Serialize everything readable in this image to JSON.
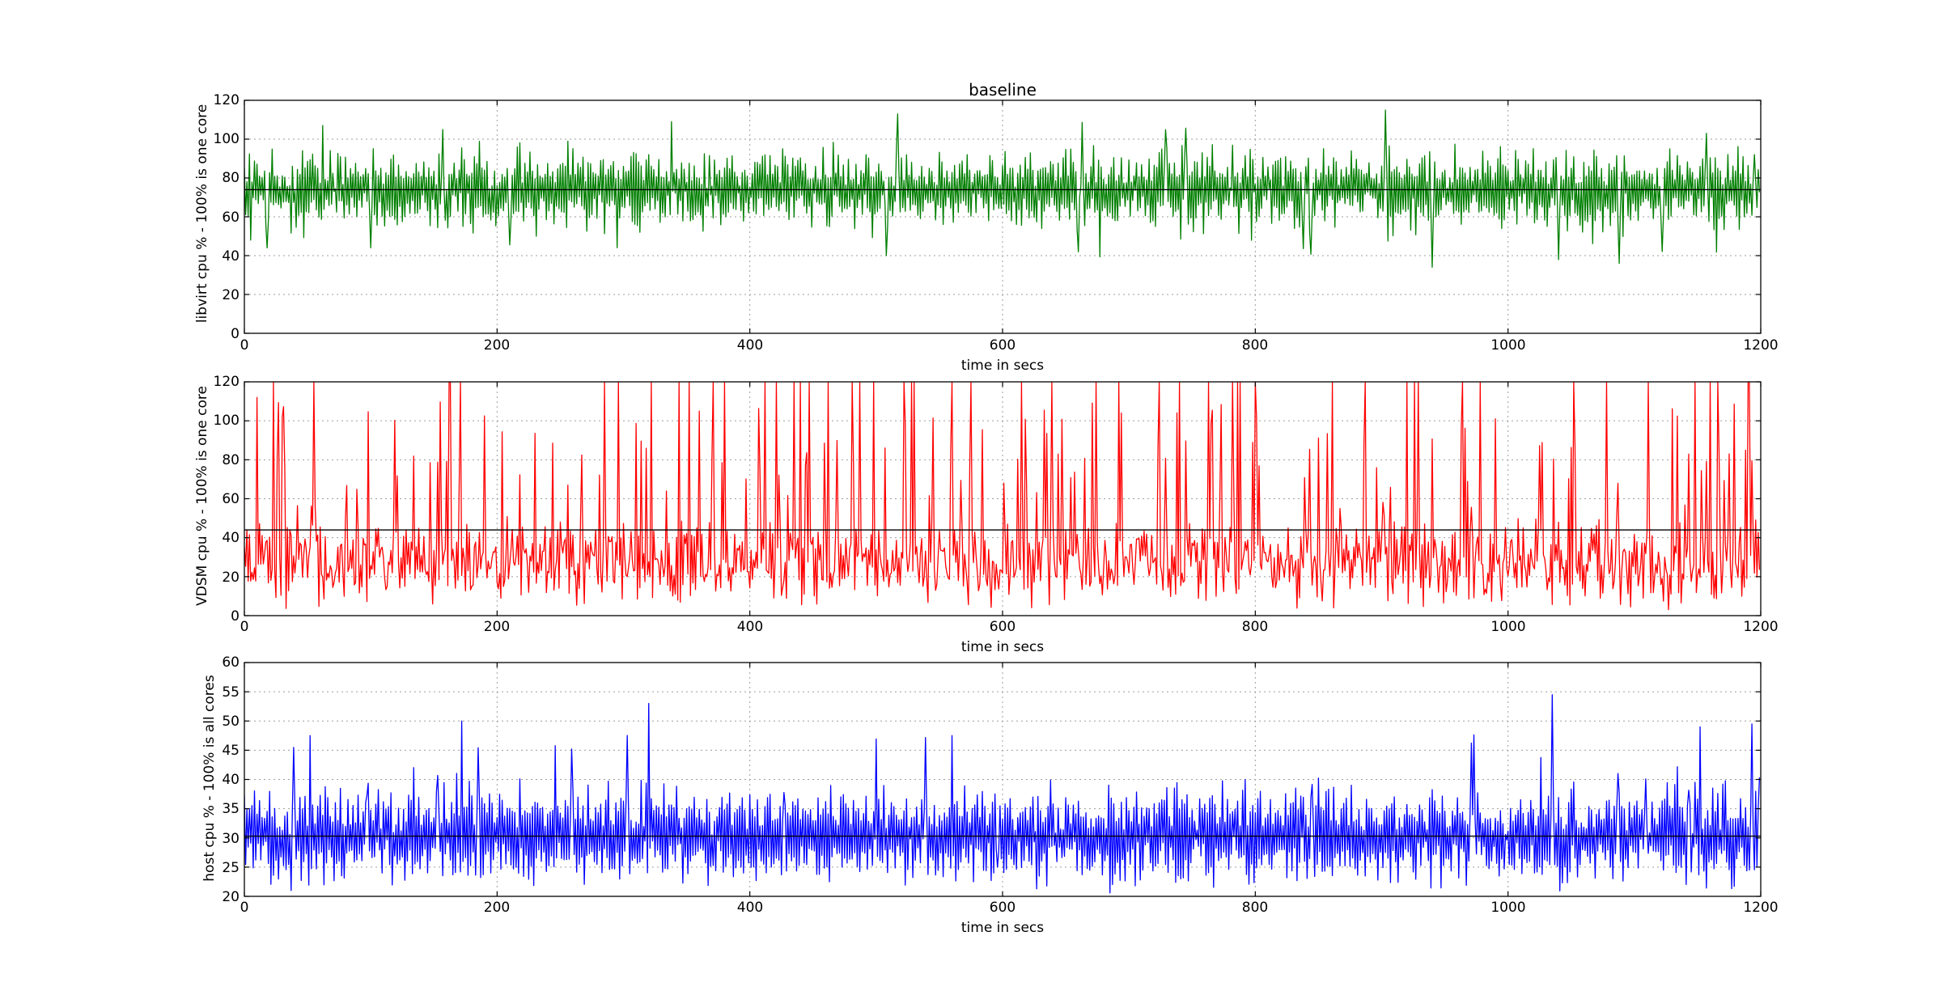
{
  "chart_data": [
    {
      "type": "line",
      "title": "baseline",
      "xlabel": "time in secs",
      "ylabel": "libvirt cpu % - 100% is one core",
      "xlim": [
        0,
        1200
      ],
      "ylim": [
        0,
        120
      ],
      "x_ticks": [
        "0",
        "200",
        "400",
        "600",
        "800",
        "1000",
        "1200"
      ],
      "y_ticks": [
        "0",
        "20",
        "40",
        "60",
        "80",
        "100",
        "120"
      ],
      "grid": true,
      "series": [
        {
          "color": "#007f00",
          "style": "line",
          "x_start": 0,
          "x_end": 1199,
          "n_points": 1200,
          "mean": 74,
          "typical_range": [
            55,
            95
          ],
          "anchors": [
            [
              0,
              85
            ],
            [
              5,
              48
            ],
            [
              62,
              107
            ],
            [
              100,
              44
            ],
            [
              157,
              105
            ],
            [
              338,
              109
            ],
            [
              517,
              113
            ],
            [
              508,
              40
            ],
            [
              660,
              42
            ],
            [
              903,
              115
            ],
            [
              940,
              34
            ],
            [
              1040,
              38
            ],
            [
              1088,
              36
            ],
            [
              1157,
              103
            ],
            [
              1195,
              92
            ]
          ]
        },
        {
          "color": "#000000",
          "style": "hline",
          "value": 74
        }
      ]
    },
    {
      "type": "line",
      "title": "",
      "xlabel": "time in secs",
      "ylabel": "VDSM cpu % - 100% is one core",
      "xlim": [
        0,
        1200
      ],
      "ylim": [
        0,
        120
      ],
      "x_ticks": [
        "0",
        "200",
        "400",
        "600",
        "800",
        "1000",
        "1200"
      ],
      "y_ticks": [
        "0",
        "20",
        "40",
        "60",
        "80",
        "100",
        "120"
      ],
      "grid": true,
      "series": [
        {
          "color": "#ff0000",
          "style": "line",
          "x_start": 0,
          "x_end": 1199,
          "n_points": 1200,
          "mean": 44,
          "baseline_range": [
            5,
            65
          ],
          "peak_value": 120,
          "anchors": [
            [
              10,
              112
            ],
            [
              380,
              120
            ],
            [
              440,
              120
            ],
            [
              560,
              120
            ],
            [
              615,
              120
            ],
            [
              740,
              120
            ],
            [
              800,
              120
            ],
            [
              862,
              4
            ],
            [
              920,
              120
            ],
            [
              1190,
              120
            ]
          ]
        },
        {
          "color": "#000000",
          "style": "hline",
          "value": 44
        }
      ]
    },
    {
      "type": "line",
      "title": "",
      "xlabel": "time in secs",
      "ylabel": "host cpu % - 100% is all cores",
      "xlim": [
        0,
        1200
      ],
      "ylim": [
        20,
        60
      ],
      "x_ticks": [
        "0",
        "200",
        "400",
        "600",
        "800",
        "1000",
        "1200"
      ],
      "y_ticks": [
        "20",
        "25",
        "30",
        "35",
        "40",
        "45",
        "50",
        "55",
        "60"
      ],
      "grid": true,
      "series": [
        {
          "color": "#0000ff",
          "style": "line",
          "x_start": 0,
          "x_end": 1199,
          "n_points": 1200,
          "mean": 30.3,
          "typical_range": [
            23,
            42
          ],
          "anchors": [
            [
              37,
              21
            ],
            [
              52,
              47.5
            ],
            [
              172,
              50
            ],
            [
              320,
              53
            ],
            [
              560,
              47.5
            ],
            [
              596,
              25
            ],
            [
              1035,
              54.5
            ],
            [
              1152,
              49
            ],
            [
              1193,
              49.5
            ]
          ]
        },
        {
          "color": "#000000",
          "style": "hline",
          "value": 30.3
        }
      ]
    }
  ]
}
